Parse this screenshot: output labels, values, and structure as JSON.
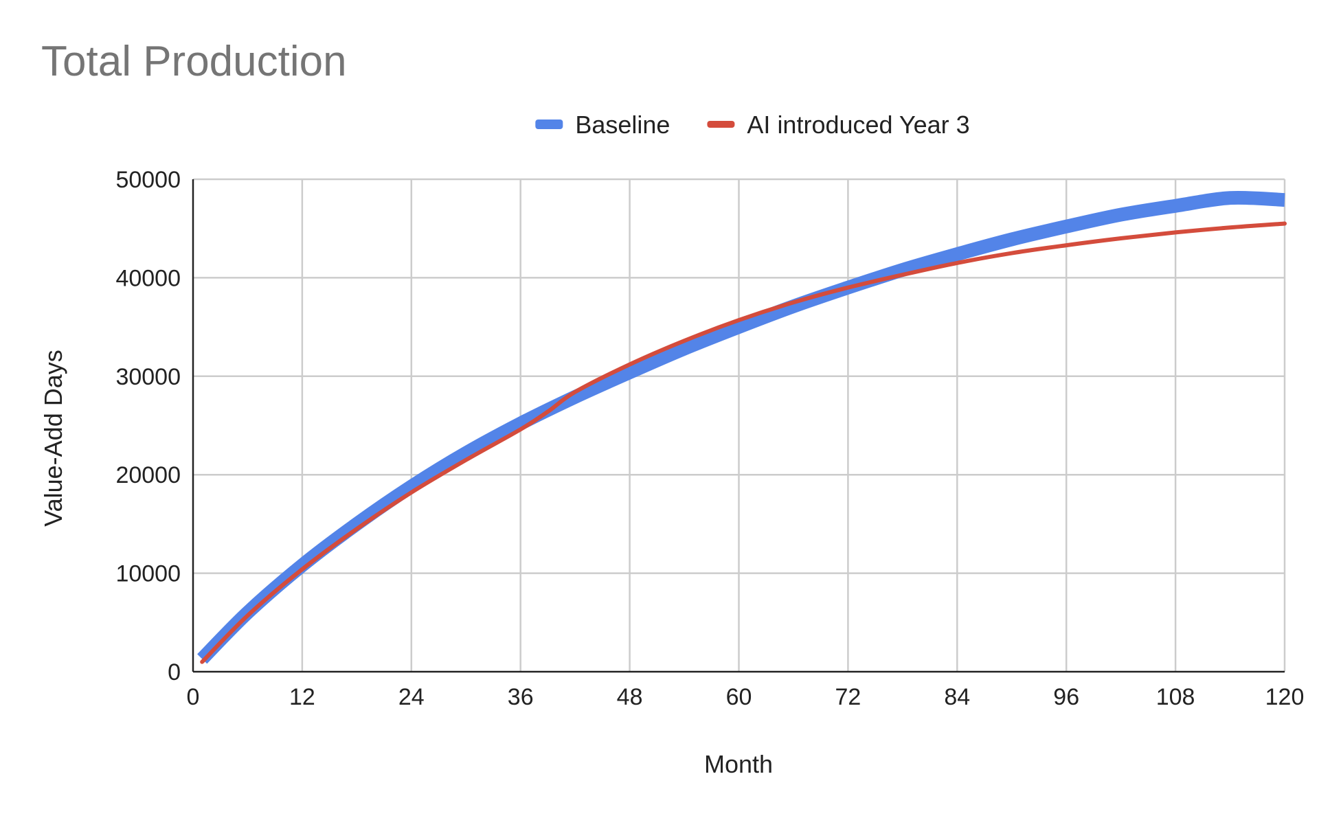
{
  "chart_data": {
    "type": "line",
    "title": "Total Production",
    "xlabel": "Month",
    "ylabel": "Value-Add Days",
    "xlim": [
      0,
      120
    ],
    "ylim": [
      0,
      50000
    ],
    "x_ticks": [
      "0",
      "12",
      "24",
      "36",
      "48",
      "60",
      "72",
      "84",
      "96",
      "108",
      "120"
    ],
    "y_ticks": [
      "0",
      "10000",
      "20000",
      "30000",
      "40000",
      "50000"
    ],
    "grid": true,
    "legend_position": "top-center",
    "series": [
      {
        "name": "Baseline",
        "color": "#5384e8",
        "x": [
          1,
          6,
          12,
          18,
          24,
          30,
          36,
          42,
          48,
          54,
          60,
          66,
          72,
          78,
          84,
          90,
          96,
          102,
          108,
          114,
          120
        ],
        "y": [
          1300,
          6000,
          10800,
          15000,
          18800,
          22200,
          25200,
          27900,
          30400,
          32800,
          35000,
          37100,
          39000,
          40800,
          42400,
          43900,
          45200,
          46400,
          47300,
          48100,
          47900
        ]
      },
      {
        "name": "AI introduced Year 3",
        "color": "#d44c3c",
        "x": [
          1,
          6,
          12,
          18,
          24,
          30,
          36,
          39,
          42,
          48,
          54,
          60,
          66,
          72,
          78,
          84,
          90,
          96,
          102,
          108,
          114,
          120
        ],
        "y": [
          1000,
          5700,
          10400,
          14500,
          18200,
          21500,
          24600,
          26400,
          28400,
          31200,
          33600,
          35700,
          37500,
          39000,
          40300,
          41500,
          42500,
          43300,
          44000,
          44600,
          45100,
          45500
        ]
      }
    ]
  }
}
